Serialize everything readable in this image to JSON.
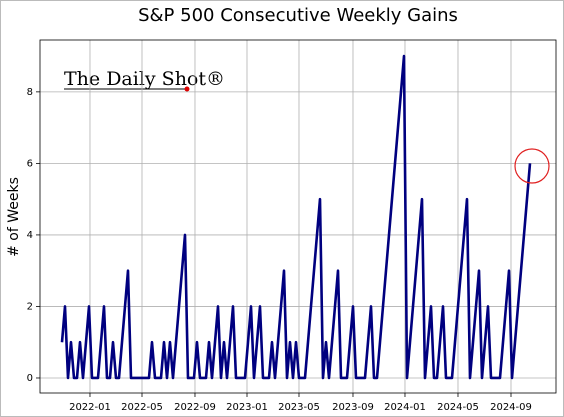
{
  "chart_data": {
    "type": "line",
    "title": "S&P 500 Consecutive Weekly Gains",
    "ylabel": "# of Weeks",
    "annotation": "The Daily Shot®",
    "x": [
      0,
      1,
      2,
      3,
      4,
      5,
      6,
      7,
      8,
      9,
      10,
      11,
      12,
      13,
      14,
      15,
      16,
      17,
      18,
      19,
      20,
      21,
      22,
      23,
      24,
      25,
      26,
      27,
      28,
      29,
      30,
      31,
      32,
      33,
      34,
      35,
      36,
      37,
      38,
      39,
      40,
      41,
      42,
      43,
      44,
      45,
      46,
      47,
      48,
      49,
      50,
      51,
      52,
      53,
      54,
      55,
      56,
      57,
      58,
      59,
      60,
      61,
      62,
      63,
      64,
      65,
      66,
      67,
      68,
      69,
      70,
      71,
      72,
      73,
      74,
      75,
      76,
      77,
      78,
      79,
      80,
      81,
      82,
      83,
      84,
      85,
      86,
      87,
      88,
      89,
      90,
      91,
      92,
      93,
      94,
      95,
      96,
      97,
      98,
      99,
      100,
      101,
      102,
      103,
      104,
      105,
      106,
      107,
      108,
      109,
      110,
      111,
      112,
      113,
      114,
      115,
      116,
      117,
      118,
      119,
      120,
      121,
      122,
      123,
      124,
      125,
      126,
      127,
      128,
      129,
      130,
      131,
      132,
      133,
      134,
      135,
      136,
      137,
      138,
      139,
      140,
      141,
      142,
      143,
      144,
      145,
      146,
      147,
      148,
      149,
      150,
      151,
      152,
      153,
      154,
      155,
      156
    ],
    "series": [
      {
        "name": "# of Weeks",
        "color": "#00007f",
        "values": [
          1,
          2,
          0,
          1,
          0,
          0,
          1,
          0,
          1,
          2,
          0,
          0,
          0,
          1,
          2,
          0,
          0,
          1,
          0,
          0,
          1,
          2,
          3,
          0,
          0,
          0,
          0,
          0,
          0,
          0,
          1,
          0,
          0,
          0,
          1,
          0,
          1,
          0,
          1,
          2,
          3,
          4,
          0,
          0,
          0,
          1,
          0,
          0,
          0,
          1,
          0,
          1,
          2,
          0,
          1,
          0,
          1,
          2,
          0,
          0,
          0,
          0,
          1,
          2,
          0,
          1,
          2,
          0,
          0,
          0,
          1,
          0,
          1,
          2,
          3,
          0,
          1,
          0,
          1,
          0,
          0,
          0,
          1,
          2,
          3,
          4,
          5,
          0,
          1,
          0,
          1,
          2,
          3,
          0,
          0,
          0,
          1,
          2,
          0,
          0,
          0,
          0,
          1,
          2,
          0,
          0,
          1,
          2,
          3,
          4,
          5,
          6,
          7,
          8,
          9,
          0,
          1,
          2,
          3,
          4,
          5,
          0,
          1,
          2,
          0,
          0,
          1,
          2,
          0,
          0,
          0,
          1,
          2,
          3,
          4,
          5,
          0,
          1,
          2,
          3,
          0,
          1,
          2,
          0,
          0,
          0,
          0,
          1,
          2,
          3,
          0,
          1,
          2,
          3,
          4,
          5,
          6
        ]
      }
    ],
    "xlim": [
      -7.33,
      164.67
    ],
    "xticks": [
      {
        "value": 9.33,
        "label": "2022-01"
      },
      {
        "value": 26.67,
        "label": "2022-05"
      },
      {
        "value": 44.33,
        "label": "2022-09"
      },
      {
        "value": 61.67,
        "label": "2023-01"
      },
      {
        "value": 79,
        "label": "2023-05"
      },
      {
        "value": 97,
        "label": "2023-09"
      },
      {
        "value": 114.33,
        "label": "2024-01"
      },
      {
        "value": 132,
        "label": "2024-05"
      },
      {
        "value": 149.67,
        "label": "2024-09"
      }
    ],
    "ylim": [
      -0.42,
      9.45
    ],
    "yticks": [
      0,
      2,
      4,
      6,
      8
    ],
    "grid": true
  }
}
